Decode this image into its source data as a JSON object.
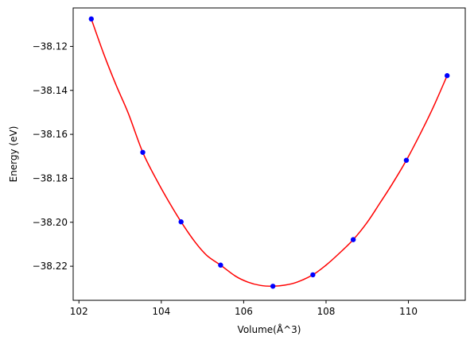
{
  "chart_data": {
    "type": "scatter",
    "xlabel": "Volume(Å^3)",
    "ylabel": "Energy (eV)",
    "xlim": [
      101.86,
      111.38
    ],
    "ylim": [
      -38.2355,
      -38.1025
    ],
    "xticks": [
      102,
      104,
      106,
      108,
      110
    ],
    "xtick_labels": [
      "102",
      "104",
      "106",
      "108",
      "110"
    ],
    "yticks": [
      -38.12,
      -38.14,
      -38.16,
      -38.18,
      -38.2,
      -38.22
    ],
    "ytick_labels": [
      "−38.12",
      "−38.14",
      "−38.16",
      "−38.18",
      "−38.20",
      "−38.22"
    ],
    "grid": false,
    "series": [
      {
        "kind": "points",
        "color": "#0000ff",
        "x": [
          102.3,
          103.55,
          104.48,
          105.44,
          106.71,
          107.68,
          108.66,
          109.95,
          110.94
        ],
        "y": [
          -38.1075,
          -38.1682,
          -38.1998,
          -38.2195,
          -38.2291,
          -38.2239,
          -38.2079,
          -38.1718,
          -38.1333
        ]
      },
      {
        "kind": "fit-line",
        "color": "#ff0000",
        "x": [
          102.3,
          102.6,
          102.9,
          103.2,
          103.55,
          103.9,
          104.2,
          104.48,
          104.8,
          105.1,
          105.44,
          105.8,
          106.1,
          106.4,
          106.71,
          107.0,
          107.3,
          107.68,
          108.0,
          108.3,
          108.66,
          109.0,
          109.3,
          109.6,
          109.95,
          110.3,
          110.6,
          110.94
        ],
        "y": [
          -38.1075,
          -38.1233,
          -38.1375,
          -38.1505,
          -38.1682,
          -38.1812,
          -38.1912,
          -38.1998,
          -38.2085,
          -38.215,
          -38.2195,
          -38.2245,
          -38.2272,
          -38.2287,
          -38.2291,
          -38.2286,
          -38.2272,
          -38.2239,
          -38.2195,
          -38.2145,
          -38.2079,
          -38.2,
          -38.1915,
          -38.1828,
          -38.1718,
          -38.1593,
          -38.1478,
          -38.1333
        ]
      }
    ]
  }
}
